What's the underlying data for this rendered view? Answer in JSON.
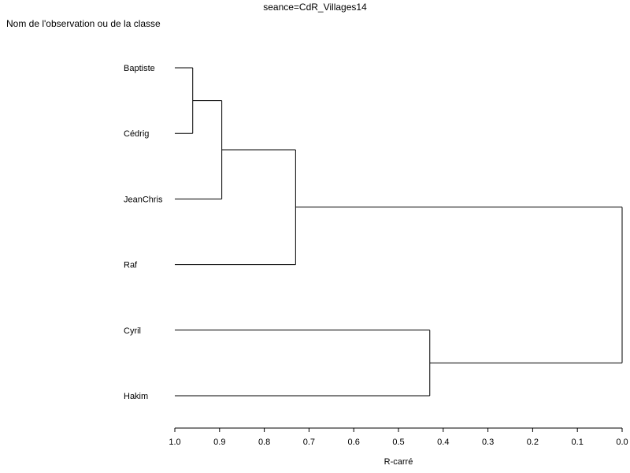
{
  "chart_data": {
    "type": "dendrogram",
    "orientation": "horizontal",
    "title": "seance=CdR_Villages14",
    "ylabel": "Nom de l'observation ou de la classe",
    "xlabel": "R-carré",
    "xlim": [
      1.0,
      0.0
    ],
    "xticks": [
      1.0,
      0.9,
      0.8,
      0.7,
      0.6,
      0.5,
      0.4,
      0.3,
      0.2,
      0.1,
      0.0
    ],
    "xtick_labels": [
      "1.0",
      "0.9",
      "0.8",
      "0.7",
      "0.6",
      "0.5",
      "0.4",
      "0.3",
      "0.2",
      "0.1",
      "0.0"
    ],
    "leaves": [
      "Baptiste",
      "Cédrig",
      "JeanChris",
      "Raf",
      "Cyril",
      "Hakim"
    ],
    "merges": [
      {
        "left": "Baptiste",
        "right": "Cédrig",
        "height": 0.96
      },
      {
        "left": "Baptiste+Cédrig",
        "right": "JeanChris",
        "height": 0.895
      },
      {
        "left": "Baptiste+Cédrig+JeanChris",
        "right": "Raf",
        "height": 0.73
      },
      {
        "left": "Cyril",
        "right": "Hakim",
        "height": 0.43
      },
      {
        "left": "Baptiste+Cédrig+JeanChris+Raf",
        "right": "Cyril+Hakim",
        "height": 0.0
      }
    ],
    "line_color": "#000000",
    "grid": false
  }
}
